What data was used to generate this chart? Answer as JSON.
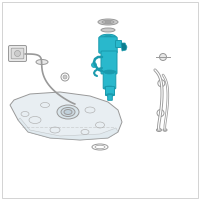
{
  "bg_color": "#ffffff",
  "border_color": "#dddddd",
  "oc": "#aaaaaa",
  "oc2": "#999999",
  "hl": "#29b8cc",
  "hl2": "#1a9aad",
  "hl3": "#0d7d8f",
  "gray_fill": "#e8e8e8",
  "gray_mid": "#cccccc",
  "gray_dark": "#aaaaaa"
}
